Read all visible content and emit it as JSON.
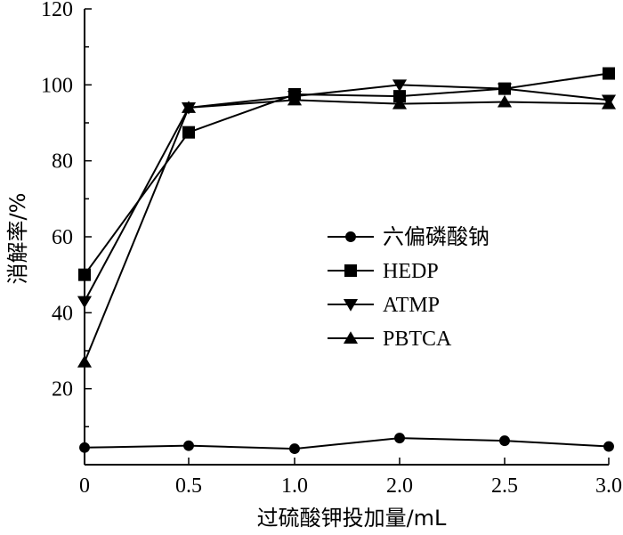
{
  "chart_data": {
    "type": "line",
    "title": "",
    "xlabel": "过硫酸钾投加量/mL",
    "ylabel": "消解率/%",
    "x_tick_labels": [
      "0",
      "0.5",
      "1.0",
      "2.0",
      "2.5",
      "3.0"
    ],
    "y_tick_labels": [
      "20",
      "40",
      "60",
      "80",
      "100",
      "120"
    ],
    "ylim": [
      0,
      120
    ],
    "legend_position": "center-right",
    "series": [
      {
        "name": "六偏磷酸钠",
        "marker": "circle",
        "values": [
          4.5,
          5.0,
          4.2,
          7.0,
          6.3,
          4.8
        ]
      },
      {
        "name": "HEDP",
        "marker": "square",
        "values": [
          50,
          87.5,
          97.5,
          97,
          99,
          103
        ]
      },
      {
        "name": "ATMP",
        "marker": "triangle-down",
        "values": [
          43,
          94,
          97,
          100,
          99,
          96
        ]
      },
      {
        "name": "PBTCA",
        "marker": "triangle-up",
        "values": [
          27,
          94,
          96,
          95,
          95.5,
          95
        ]
      }
    ]
  }
}
